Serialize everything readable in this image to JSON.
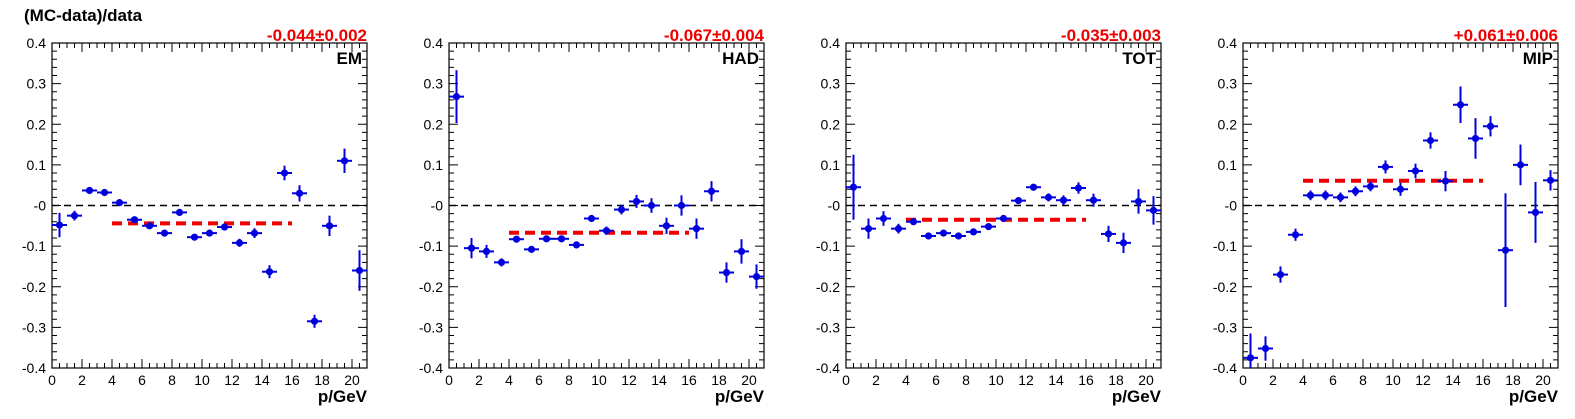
{
  "figure": {
    "ylabel": "(MC-data)/data",
    "xlabel": "p/GeV",
    "colors": {
      "points": "#0000dd",
      "fit": "#ee0000",
      "zero": "#000000",
      "fit_text": "#ee0000"
    }
  },
  "chart_data": [
    {
      "type": "scatter",
      "panel_label": "EM",
      "fit_text": "-0.044±0.002",
      "fit_value": -0.044,
      "fit_range": [
        4,
        16
      ],
      "xlabel": "p/GeV",
      "ylabel": "(MC-data)/data",
      "xlim": [
        0,
        21
      ],
      "ylim": [
        -0.4,
        0.4
      ],
      "xticks": [
        "0",
        "2",
        "4",
        "6",
        "8",
        "10",
        "12",
        "14",
        "16",
        "18",
        "20"
      ],
      "yticks": [
        "-0.4",
        "-0.3",
        "-0.2",
        "-0.1",
        "-0",
        "0.1",
        "0.2",
        "0.3",
        "0.4"
      ],
      "points": [
        {
          "x": 0.5,
          "y": -0.048,
          "err": 0.03
        },
        {
          "x": 1.5,
          "y": -0.025,
          "err": 0.012
        },
        {
          "x": 2.5,
          "y": 0.037,
          "err": 0.006
        },
        {
          "x": 3.5,
          "y": 0.032,
          "err": 0.006
        },
        {
          "x": 4.5,
          "y": 0.007,
          "err": 0.006
        },
        {
          "x": 5.5,
          "y": -0.035,
          "err": 0.006
        },
        {
          "x": 6.5,
          "y": -0.05,
          "err": 0.006
        },
        {
          "x": 7.5,
          "y": -0.068,
          "err": 0.006
        },
        {
          "x": 8.5,
          "y": -0.017,
          "err": 0.006
        },
        {
          "x": 9.5,
          "y": -0.078,
          "err": 0.006
        },
        {
          "x": 10.5,
          "y": -0.068,
          "err": 0.008
        },
        {
          "x": 11.5,
          "y": -0.053,
          "err": 0.008
        },
        {
          "x": 12.5,
          "y": -0.092,
          "err": 0.01
        },
        {
          "x": 13.5,
          "y": -0.068,
          "err": 0.012
        },
        {
          "x": 14.5,
          "y": -0.163,
          "err": 0.016
        },
        {
          "x": 15.5,
          "y": 0.08,
          "err": 0.018
        },
        {
          "x": 16.5,
          "y": 0.03,
          "err": 0.02
        },
        {
          "x": 17.5,
          "y": -0.285,
          "err": 0.016
        },
        {
          "x": 18.5,
          "y": -0.05,
          "err": 0.025
        },
        {
          "x": 19.5,
          "y": 0.11,
          "err": 0.03
        },
        {
          "x": 20.5,
          "y": -0.16,
          "err": 0.05
        }
      ]
    },
    {
      "type": "scatter",
      "panel_label": "HAD",
      "fit_text": "-0.067±0.004",
      "fit_value": -0.067,
      "fit_range": [
        4,
        16
      ],
      "xlabel": "p/GeV",
      "ylabel": "",
      "xlim": [
        0,
        21
      ],
      "ylim": [
        -0.4,
        0.4
      ],
      "xticks": [
        "0",
        "2",
        "4",
        "6",
        "8",
        "10",
        "12",
        "14",
        "16",
        "18",
        "20"
      ],
      "yticks": [
        "-0.4",
        "-0.3",
        "-0.2",
        "-0.1",
        "-0",
        "0.1",
        "0.2",
        "0.3",
        "0.4"
      ],
      "points": [
        {
          "x": 0.5,
          "y": 0.268,
          "err": 0.065
        },
        {
          "x": 1.5,
          "y": -0.105,
          "err": 0.025
        },
        {
          "x": 2.5,
          "y": -0.113,
          "err": 0.016
        },
        {
          "x": 3.5,
          "y": -0.14,
          "err": 0.01
        },
        {
          "x": 4.5,
          "y": -0.083,
          "err": 0.008
        },
        {
          "x": 5.5,
          "y": -0.108,
          "err": 0.008
        },
        {
          "x": 6.5,
          "y": -0.082,
          "err": 0.008
        },
        {
          "x": 7.5,
          "y": -0.082,
          "err": 0.008
        },
        {
          "x": 8.5,
          "y": -0.097,
          "err": 0.008
        },
        {
          "x": 9.5,
          "y": -0.032,
          "err": 0.008
        },
        {
          "x": 10.5,
          "y": -0.062,
          "err": 0.01
        },
        {
          "x": 11.5,
          "y": -0.01,
          "err": 0.012
        },
        {
          "x": 12.5,
          "y": 0.01,
          "err": 0.016
        },
        {
          "x": 13.5,
          "y": 0.0,
          "err": 0.018
        },
        {
          "x": 14.5,
          "y": -0.05,
          "err": 0.02
        },
        {
          "x": 15.5,
          "y": 0.0,
          "err": 0.025
        },
        {
          "x": 16.5,
          "y": -0.057,
          "err": 0.025
        },
        {
          "x": 17.5,
          "y": 0.035,
          "err": 0.025
        },
        {
          "x": 18.5,
          "y": -0.165,
          "err": 0.025
        },
        {
          "x": 19.5,
          "y": -0.113,
          "err": 0.03
        },
        {
          "x": 20.5,
          "y": -0.175,
          "err": 0.03
        }
      ]
    },
    {
      "type": "scatter",
      "panel_label": "TOT",
      "fit_text": "-0.035±0.003",
      "fit_value": -0.035,
      "fit_range": [
        4,
        16
      ],
      "xlabel": "p/GeV",
      "ylabel": "",
      "xlim": [
        0,
        21
      ],
      "ylim": [
        -0.4,
        0.4
      ],
      "xticks": [
        "0",
        "2",
        "4",
        "6",
        "8",
        "10",
        "12",
        "14",
        "16",
        "18",
        "20"
      ],
      "yticks": [
        "-0.4",
        "-0.3",
        "-0.2",
        "-0.1",
        "-0",
        "0.1",
        "0.2",
        "0.3",
        "0.4"
      ],
      "points": [
        {
          "x": 0.5,
          "y": 0.045,
          "err": 0.08
        },
        {
          "x": 1.5,
          "y": -0.057,
          "err": 0.025
        },
        {
          "x": 2.5,
          "y": -0.032,
          "err": 0.018
        },
        {
          "x": 3.5,
          "y": -0.057,
          "err": 0.012
        },
        {
          "x": 4.5,
          "y": -0.04,
          "err": 0.008
        },
        {
          "x": 5.5,
          "y": -0.075,
          "err": 0.006
        },
        {
          "x": 6.5,
          "y": -0.068,
          "err": 0.006
        },
        {
          "x": 7.5,
          "y": -0.075,
          "err": 0.006
        },
        {
          "x": 8.5,
          "y": -0.065,
          "err": 0.006
        },
        {
          "x": 9.5,
          "y": -0.052,
          "err": 0.006
        },
        {
          "x": 10.5,
          "y": -0.032,
          "err": 0.006
        },
        {
          "x": 11.5,
          "y": 0.012,
          "err": 0.006
        },
        {
          "x": 12.5,
          "y": 0.045,
          "err": 0.008
        },
        {
          "x": 13.5,
          "y": 0.02,
          "err": 0.01
        },
        {
          "x": 14.5,
          "y": 0.013,
          "err": 0.012
        },
        {
          "x": 15.5,
          "y": 0.043,
          "err": 0.014
        },
        {
          "x": 16.5,
          "y": 0.013,
          "err": 0.016
        },
        {
          "x": 17.5,
          "y": -0.07,
          "err": 0.02
        },
        {
          "x": 18.5,
          "y": -0.092,
          "err": 0.025
        },
        {
          "x": 19.5,
          "y": 0.01,
          "err": 0.03
        },
        {
          "x": 20.5,
          "y": -0.012,
          "err": 0.035
        }
      ]
    },
    {
      "type": "scatter",
      "panel_label": "MIP",
      "fit_text": "+0.061±0.006",
      "fit_value": 0.061,
      "fit_range": [
        4,
        16
      ],
      "xlabel": "p/GeV",
      "ylabel": "",
      "xlim": [
        0,
        21
      ],
      "ylim": [
        -0.4,
        0.4
      ],
      "xticks": [
        "0",
        "2",
        "4",
        "6",
        "8",
        "10",
        "12",
        "14",
        "16",
        "18",
        "20"
      ],
      "yticks": [
        "-0.4",
        "-0.3",
        "-0.2",
        "-0.1",
        "-0",
        "0.1",
        "0.2",
        "0.3",
        "0.4"
      ],
      "points": [
        {
          "x": 0.5,
          "y": -0.375,
          "err": 0.06
        },
        {
          "x": 1.5,
          "y": -0.352,
          "err": 0.03
        },
        {
          "x": 2.5,
          "y": -0.17,
          "err": 0.02
        },
        {
          "x": 3.5,
          "y": -0.072,
          "err": 0.015
        },
        {
          "x": 4.5,
          "y": 0.025,
          "err": 0.012
        },
        {
          "x": 5.5,
          "y": 0.025,
          "err": 0.012
        },
        {
          "x": 6.5,
          "y": 0.02,
          "err": 0.012
        },
        {
          "x": 7.5,
          "y": 0.035,
          "err": 0.012
        },
        {
          "x": 8.5,
          "y": 0.047,
          "err": 0.012
        },
        {
          "x": 9.5,
          "y": 0.095,
          "err": 0.016
        },
        {
          "x": 10.5,
          "y": 0.04,
          "err": 0.016
        },
        {
          "x": 11.5,
          "y": 0.085,
          "err": 0.018
        },
        {
          "x": 12.5,
          "y": 0.16,
          "err": 0.02
        },
        {
          "x": 13.5,
          "y": 0.06,
          "err": 0.025
        },
        {
          "x": 14.5,
          "y": 0.248,
          "err": 0.045
        },
        {
          "x": 15.5,
          "y": 0.165,
          "err": 0.05
        },
        {
          "x": 16.5,
          "y": 0.195,
          "err": 0.025
        },
        {
          "x": 17.5,
          "y": -0.11,
          "err": 0.14
        },
        {
          "x": 18.5,
          "y": 0.1,
          "err": 0.05
        },
        {
          "x": 19.5,
          "y": -0.017,
          "err": 0.075
        },
        {
          "x": 20.5,
          "y": 0.062,
          "err": 0.025
        }
      ]
    }
  ]
}
